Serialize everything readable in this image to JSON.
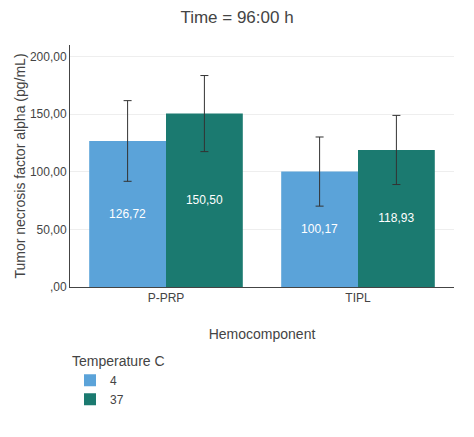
{
  "chart_data": {
    "type": "bar",
    "title": "Time = 96:00 h",
    "xlabel": "Hemocomponent",
    "ylabel": "Tumor necrosis factor alpha (pg/mL)",
    "categories": [
      "P-PRP",
      "TIPL"
    ],
    "series": [
      {
        "name": "4",
        "color": "#5ba3d9",
        "values": [
          126.72,
          100.17
        ],
        "value_labels": [
          "126,72",
          "100,17"
        ],
        "errors": [
          35,
          30
        ]
      },
      {
        "name": "37",
        "color": "#1b7a70",
        "values": [
          150.5,
          118.93
        ],
        "value_labels": [
          "150,50",
          "118,93"
        ],
        "errors": [
          33,
          30
        ]
      }
    ],
    "legend_title": "Temperature C",
    "legend": "bottom left",
    "data_labels": true,
    "ylim": [
      0,
      210
    ],
    "yticks": [
      {
        "value": 0,
        "label": ",00"
      },
      {
        "value": 50,
        "label": "50,00"
      },
      {
        "value": 100,
        "label": "100,00"
      },
      {
        "value": 150,
        "label": "150,00"
      },
      {
        "value": 200,
        "label": "200,00"
      }
    ],
    "grid": true
  }
}
